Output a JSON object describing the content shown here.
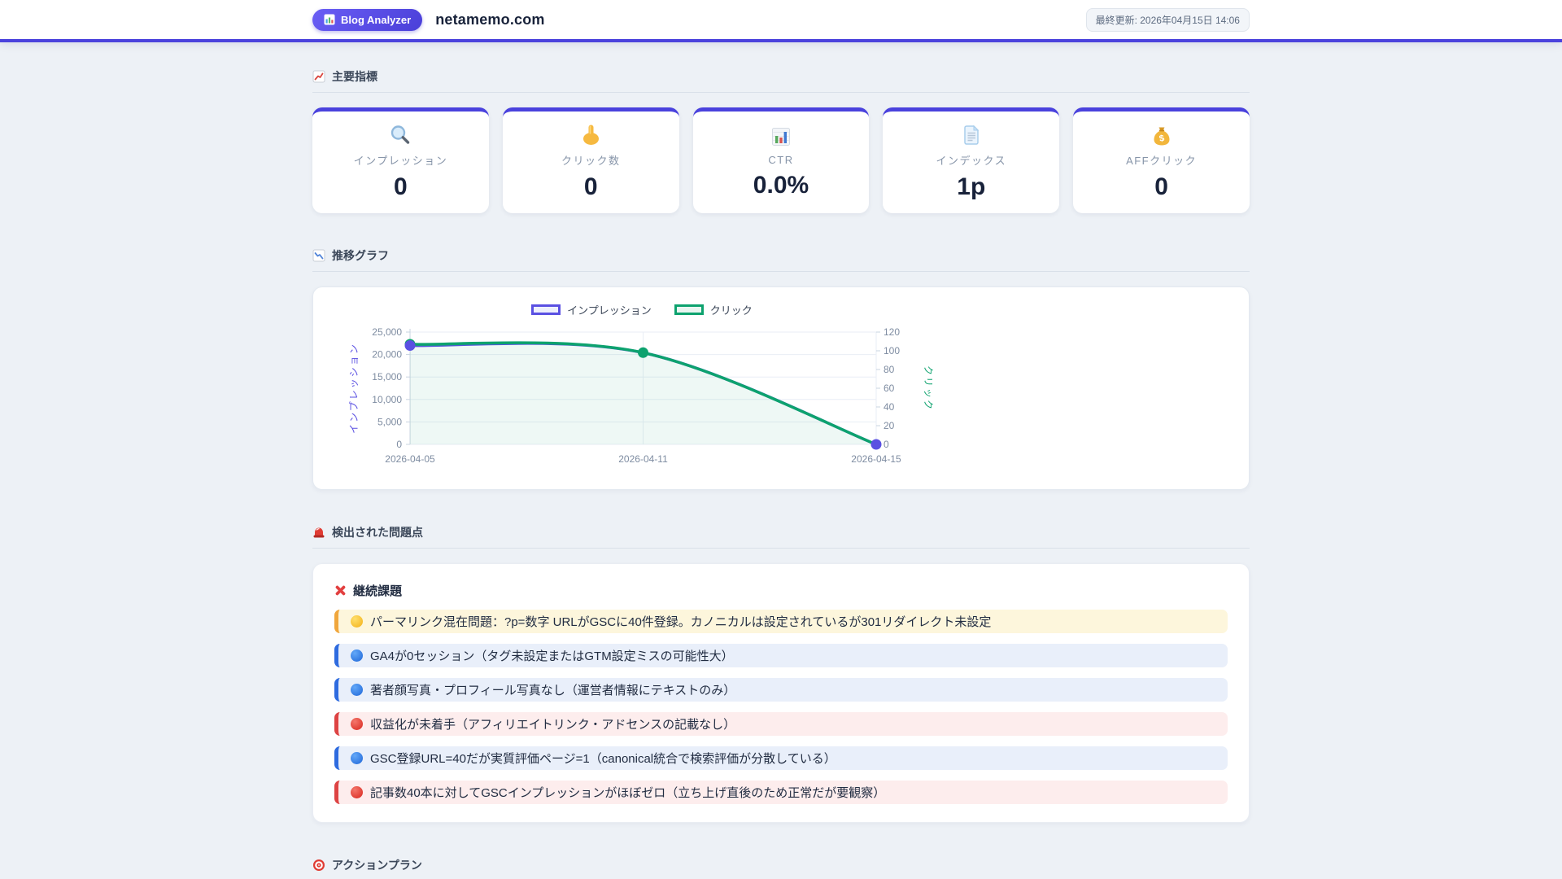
{
  "header": {
    "badge_label": "Blog Analyzer",
    "badge_icon": "chart-badge-icon",
    "site_title": "netamemo.com",
    "last_updated": "最終更新: 2026年04月15日 14:06"
  },
  "sections": {
    "metrics": {
      "title": "主要指標",
      "icon": "chart-up-icon"
    },
    "trend": {
      "title": "推移グラフ",
      "icon": "chart-down-icon"
    },
    "issues": {
      "title": "検出された問題点",
      "icon": "siren-icon"
    },
    "actions": {
      "title": "アクションプラン",
      "icon": "target-icon"
    }
  },
  "metrics": [
    {
      "icon": "magnifier-icon",
      "label": "インプレッション",
      "value": "0"
    },
    {
      "icon": "pointing-hand-icon",
      "label": "クリック数",
      "value": "0"
    },
    {
      "icon": "bar-chart-icon",
      "label": "CTR",
      "value": "0.0%"
    },
    {
      "icon": "page-icon",
      "label": "インデックス",
      "value": "1p"
    },
    {
      "icon": "money-bag-icon",
      "label": "AFFクリック",
      "value": "0"
    }
  ],
  "issues": {
    "heading": "継続課題",
    "heading_icon": "red-x-icon",
    "items": [
      {
        "icon": "yellow-circle-icon",
        "severity": "warning",
        "text": "パーマリンク混在問題：?p=数字 URLがGSCに40件登録。カノニカルは設定されているが301リダイレクト未設定"
      },
      {
        "icon": "blue-circle-icon",
        "severity": "info",
        "text": "GA4が0セッション（タグ未設定またはGTM設定ミスの可能性大）"
      },
      {
        "icon": "blue-circle-icon",
        "severity": "info",
        "text": "著者顔写真・プロフィール写真なし（運営者情報にテキストのみ）"
      },
      {
        "icon": "red-circle-icon",
        "severity": "danger",
        "text": "収益化が未着手（アフィリエイトリンク・アドセンスの記載なし）"
      },
      {
        "icon": "blue-circle-icon",
        "severity": "info",
        "text": "GSC登録URL=40だが実質評価ページ=1（canonical統合で検索評価が分散している）"
      },
      {
        "icon": "red-circle-icon",
        "severity": "danger",
        "text": "記事数40本に対してGSCインプレッションがほぼゼロ（立ち上げ直後のため正常だが要観察）"
      }
    ]
  },
  "chart_data": {
    "type": "line",
    "x": [
      "2026-04-05",
      "2026-04-11",
      "2026-04-15"
    ],
    "series": [
      {
        "name": "インプレッション",
        "axis": "left",
        "color": "#5a50e2",
        "values": [
          22000,
          20400,
          0
        ],
        "point_indices": [
          0,
          2
        ]
      },
      {
        "name": "クリック",
        "axis": "right",
        "color": "#0da26e",
        "values": [
          107,
          98,
          0
        ],
        "point_indices": [
          0,
          1
        ],
        "area": true,
        "area_fill": "rgba(14,160,110,0.07)"
      }
    ],
    "left_axis": {
      "label": "インプレッション",
      "ticks": [
        0,
        5000,
        10000,
        15000,
        20000,
        25000
      ],
      "max": 25000,
      "color": "#5a50e2"
    },
    "right_axis": {
      "label": "クリック",
      "ticks": [
        0,
        20,
        40,
        60,
        80,
        100,
        120
      ],
      "max": 120,
      "color": "#0da26e"
    },
    "grid": true,
    "legend_position": "top",
    "tick_color": "#7e8ca1"
  }
}
